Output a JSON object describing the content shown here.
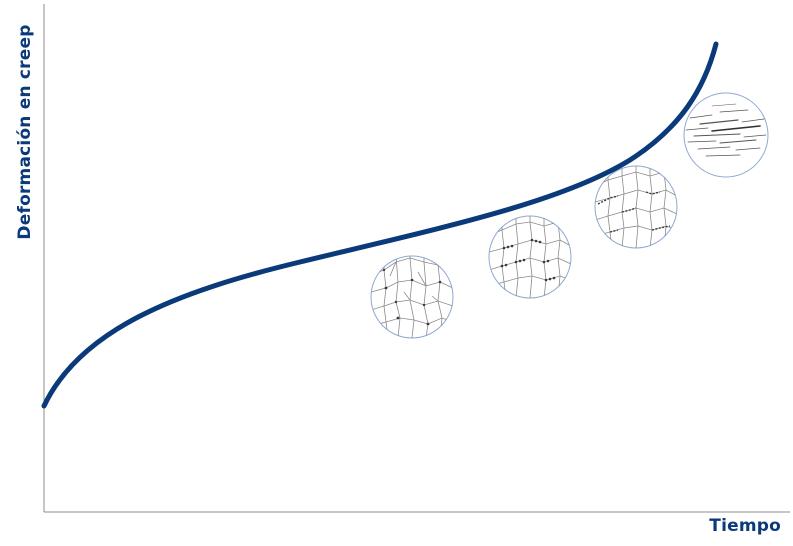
{
  "axes": {
    "ylabel": "Deformación en creep",
    "xlabel": "Tiempo"
  },
  "colors": {
    "curve": "#0a3a7a",
    "axis": "#8c8c8c",
    "label": "#0a3a7a",
    "circle_outline": "#8fa9d2",
    "grain_boundary": "#8a8a8a",
    "defect": "#3a3a3a"
  },
  "curve": {
    "description_shape": "primary-secondary-tertiary creep",
    "stages": [
      "primary",
      "secondary",
      "tertiary"
    ]
  },
  "micrographs": [
    {
      "name": "micrograph-stage-1",
      "kind": "grains-isolated-voids"
    },
    {
      "name": "micrograph-stage-2",
      "kind": "grains-void-chains"
    },
    {
      "name": "micrograph-stage-3",
      "kind": "grains-microcracks"
    },
    {
      "name": "micrograph-stage-4",
      "kind": "macrocracks"
    }
  ]
}
